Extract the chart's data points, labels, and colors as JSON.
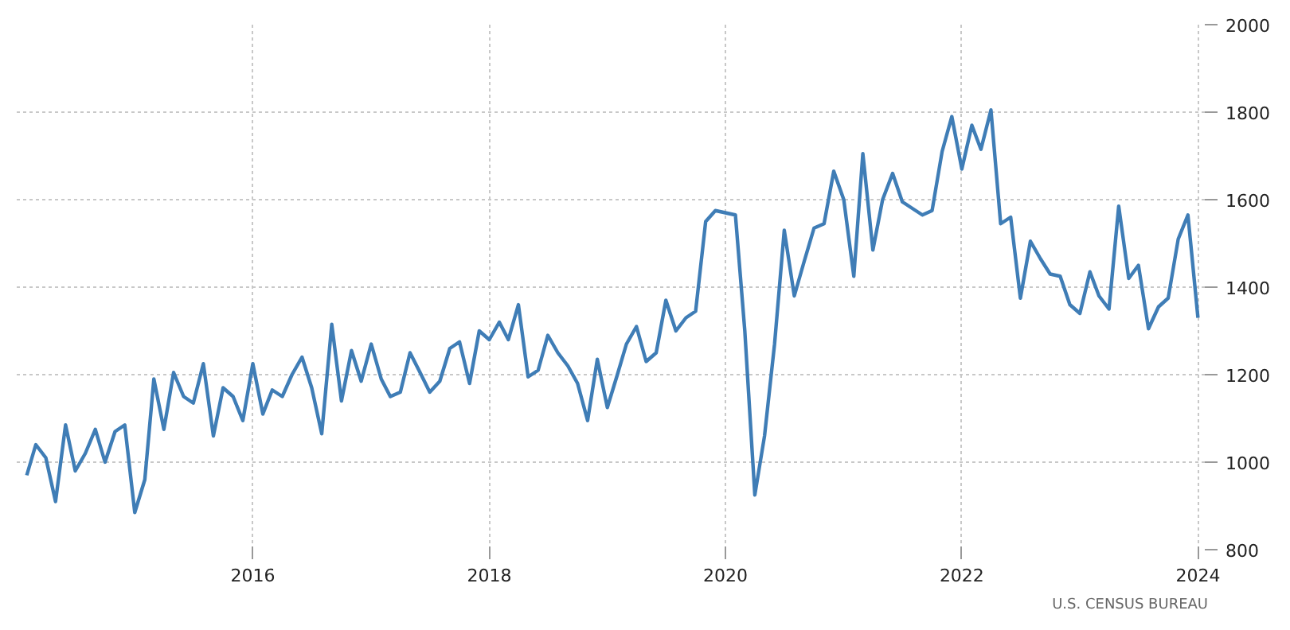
{
  "chart_data": {
    "type": "line",
    "xlim": [
      "2014-01",
      "2024-02"
    ],
    "xticks": [
      "2016",
      "2018",
      "2020",
      "2022",
      "2024"
    ],
    "ylim": [
      800,
      2000
    ],
    "yticks": [
      800,
      1000,
      1200,
      1400,
      1600,
      1800,
      2000
    ],
    "grid": true,
    "line_style": "solid",
    "marker": "none",
    "x": [
      "2014-02",
      "2014-03",
      "2014-04",
      "2014-05",
      "2014-06",
      "2014-07",
      "2014-08",
      "2014-09",
      "2014-10",
      "2014-11",
      "2014-12",
      "2015-01",
      "2015-02",
      "2015-03",
      "2015-04",
      "2015-05",
      "2015-06",
      "2015-07",
      "2015-08",
      "2015-09",
      "2015-10",
      "2015-11",
      "2015-12",
      "2016-01",
      "2016-02",
      "2016-03",
      "2016-04",
      "2016-05",
      "2016-06",
      "2016-07",
      "2016-08",
      "2016-09",
      "2016-10",
      "2016-11",
      "2016-12",
      "2017-01",
      "2017-02",
      "2017-03",
      "2017-04",
      "2017-05",
      "2017-06",
      "2017-07",
      "2017-08",
      "2017-09",
      "2017-10",
      "2017-11",
      "2017-12",
      "2018-01",
      "2018-02",
      "2018-03",
      "2018-04",
      "2018-05",
      "2018-06",
      "2018-07",
      "2018-08",
      "2018-09",
      "2018-10",
      "2018-11",
      "2018-12",
      "2019-01",
      "2019-02",
      "2019-03",
      "2019-04",
      "2019-05",
      "2019-06",
      "2019-07",
      "2019-08",
      "2019-09",
      "2019-10",
      "2019-11",
      "2019-12",
      "2020-01",
      "2020-02",
      "2020-03",
      "2020-04",
      "2020-05",
      "2020-06",
      "2020-07",
      "2020-08",
      "2020-09",
      "2020-10",
      "2020-11",
      "2020-12",
      "2021-01",
      "2021-02",
      "2021-03",
      "2021-04",
      "2021-05",
      "2021-06",
      "2021-07",
      "2021-08",
      "2021-09",
      "2021-10",
      "2021-11",
      "2021-12",
      "2022-01",
      "2022-02",
      "2022-03",
      "2022-04",
      "2022-05",
      "2022-06",
      "2022-07",
      "2022-08",
      "2022-09",
      "2022-10",
      "2022-11",
      "2022-12",
      "2023-01",
      "2023-02",
      "2023-03",
      "2023-04",
      "2023-05",
      "2023-06",
      "2023-07",
      "2023-08",
      "2023-09",
      "2023-10",
      "2023-11",
      "2023-12",
      "2024-01"
    ],
    "series": [
      {
        "color": "#3f7db6",
        "values": [
          970,
          1040,
          1010,
          910,
          1085,
          980,
          1020,
          1075,
          1000,
          1070,
          1085,
          885,
          960,
          1190,
          1075,
          1205,
          1150,
          1135,
          1225,
          1060,
          1170,
          1150,
          1095,
          1225,
          1110,
          1165,
          1150,
          1200,
          1240,
          1170,
          1065,
          1315,
          1140,
          1255,
          1185,
          1270,
          1190,
          1150,
          1160,
          1250,
          1205,
          1160,
          1185,
          1260,
          1275,
          1180,
          1300,
          1280,
          1320,
          1280,
          1360,
          1195,
          1210,
          1290,
          1250,
          1220,
          1180,
          1095,
          1235,
          1125,
          1200,
          1270,
          1310,
          1230,
          1250,
          1370,
          1300,
          1330,
          1345,
          1550,
          1575,
          1570,
          1565,
          1300,
          925,
          1060,
          1270,
          1530,
          1380,
          1460,
          1535,
          1545,
          1665,
          1600,
          1425,
          1705,
          1485,
          1600,
          1660,
          1595,
          1580,
          1565,
          1575,
          1710,
          1790,
          1670,
          1770,
          1715,
          1805,
          1545,
          1560,
          1375,
          1505,
          1465,
          1430,
          1425,
          1360,
          1340,
          1435,
          1380,
          1350,
          1585,
          1420,
          1450,
          1305,
          1355,
          1375,
          1510,
          1565,
          1330
        ]
      }
    ],
    "annotations": [
      "U.S. CENSUS BUREAU"
    ]
  }
}
